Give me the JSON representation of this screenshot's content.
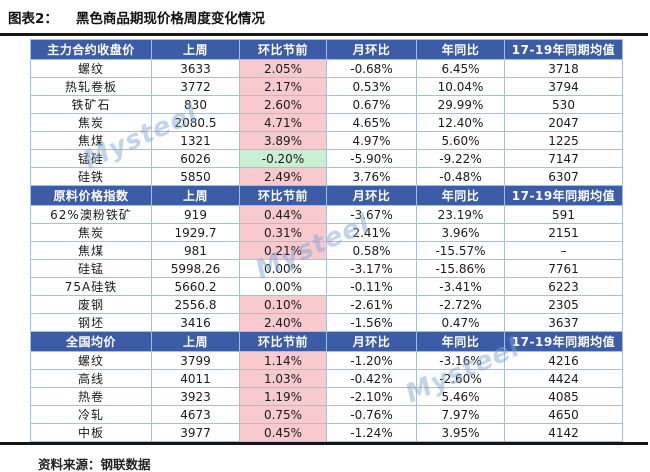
{
  "title": {
    "label": "图表2：",
    "text": "黑色商品期现价格周度变化情况"
  },
  "watermark": "Mysteel",
  "footer": {
    "text": "资料来源：钢联数据"
  },
  "colors": {
    "header_bg": "#3D5CA7",
    "header_text": "#FFFFFF",
    "positive_bg": "#F8CACE",
    "positive_text": "#E0282E",
    "negative_bg": "#C9F0D2",
    "negative_text": "#1E7A3E",
    "cell_border": "#9CC3E6",
    "rule": "#161616",
    "watermark": "#7DA5D7"
  },
  "table": {
    "columns": [
      "上周",
      "环比节前",
      "月环比",
      "年同比",
      "17-19年同期均值"
    ],
    "sections": [
      {
        "header": "主力合约收盘价",
        "rows": [
          {
            "name": "螺纹",
            "last_week": "3633",
            "wow": "2.05%",
            "wow_style": "up",
            "mom": "-0.68%",
            "yoy": "6.45%",
            "avg": "3718"
          },
          {
            "name": "热轧卷板",
            "last_week": "3772",
            "wow": "2.17%",
            "wow_style": "up",
            "mom": "0.53%",
            "yoy": "10.04%",
            "avg": "3794"
          },
          {
            "name": "铁矿石",
            "last_week": "830",
            "wow": "2.60%",
            "wow_style": "up",
            "mom": "0.67%",
            "yoy": "29.99%",
            "avg": "530"
          },
          {
            "name": "焦炭",
            "last_week": "2080.5",
            "wow": "4.71%",
            "wow_style": "up",
            "mom": "4.65%",
            "yoy": "12.40%",
            "avg": "2047"
          },
          {
            "name": "焦煤",
            "last_week": "1321",
            "wow": "3.89%",
            "wow_style": "up",
            "mom": "4.97%",
            "yoy": "5.60%",
            "avg": "1225"
          },
          {
            "name": "锰硅",
            "last_week": "6026",
            "wow": "-0.20%",
            "wow_style": "down",
            "mom": "-5.90%",
            "yoy": "-9.22%",
            "avg": "7147"
          },
          {
            "name": "硅铁",
            "last_week": "5850",
            "wow": "2.49%",
            "wow_style": "up",
            "mom": "3.76%",
            "yoy": "-0.48%",
            "avg": "6307"
          }
        ]
      },
      {
        "header": "原料价格指数",
        "rows": [
          {
            "name": "62%澳粉铁矿",
            "last_week": "919",
            "wow": "0.44%",
            "wow_style": "up",
            "mom": "-3.67%",
            "yoy": "23.19%",
            "avg": "591"
          },
          {
            "name": "焦炭",
            "last_week": "1929.7",
            "wow": "0.31%",
            "wow_style": "up",
            "mom": "2.41%",
            "yoy": "3.96%",
            "avg": "2151"
          },
          {
            "name": "焦煤",
            "last_week": "981",
            "wow": "0.21%",
            "wow_style": "up",
            "mom": "0.58%",
            "yoy": "-15.57%",
            "avg": "–"
          },
          {
            "name": "硅锰",
            "last_week": "5998.26",
            "wow": "0.00%",
            "wow_style": "flat",
            "mom": "-3.17%",
            "yoy": "-15.86%",
            "avg": "7761"
          },
          {
            "name": "75A硅铁",
            "last_week": "5660.2",
            "wow": "0.00%",
            "wow_style": "flat",
            "mom": "-0.11%",
            "yoy": "-3.41%",
            "avg": "6223"
          },
          {
            "name": "废钢",
            "last_week": "2556.8",
            "wow": "0.10%",
            "wow_style": "up",
            "mom": "-2.61%",
            "yoy": "-2.72%",
            "avg": "2305"
          },
          {
            "name": "钢坯",
            "last_week": "3416",
            "wow": "2.40%",
            "wow_style": "up",
            "mom": "-1.56%",
            "yoy": "0.47%",
            "avg": "3637"
          }
        ]
      },
      {
        "header": "全国均价",
        "rows": [
          {
            "name": "螺纹",
            "last_week": "3799",
            "wow": "1.14%",
            "wow_style": "up",
            "mom": "-1.20%",
            "yoy": "-3.16%",
            "avg": "4216"
          },
          {
            "name": "高线",
            "last_week": "4011",
            "wow": "1.03%",
            "wow_style": "up",
            "mom": "-0.42%",
            "yoy": "-2.60%",
            "avg": "4424"
          },
          {
            "name": "热卷",
            "last_week": "3923",
            "wow": "1.19%",
            "wow_style": "up",
            "mom": "-2.10%",
            "yoy": "5.46%",
            "avg": "4085"
          },
          {
            "name": "冷轧",
            "last_week": "4673",
            "wow": "0.75%",
            "wow_style": "up",
            "mom": "-0.76%",
            "yoy": "7.97%",
            "avg": "4650"
          },
          {
            "name": "中板",
            "last_week": "3977",
            "wow": "0.45%",
            "wow_style": "up",
            "mom": "-1.24%",
            "yoy": "3.95%",
            "avg": "4142"
          }
        ]
      }
    ]
  }
}
